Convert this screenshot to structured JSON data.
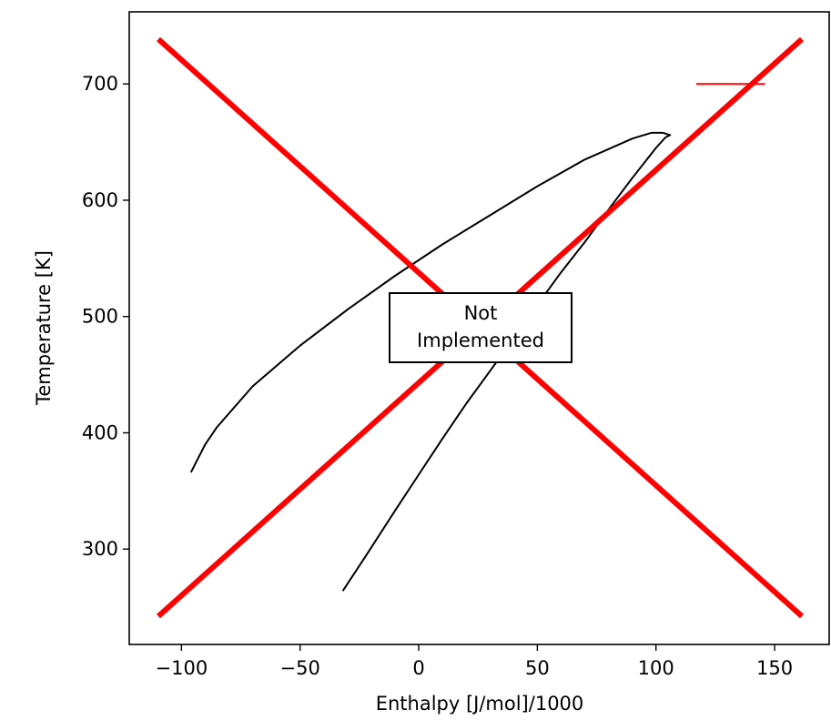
{
  "chart_data": {
    "type": "line",
    "xlabel": "Enthalpy [J/mol]/1000",
    "ylabel": "Temperature [K]",
    "xlim": [
      -122,
      173
    ],
    "ylim": [
      218,
      762
    ],
    "xticks": [
      -100,
      -50,
      0,
      50,
      100,
      150
    ],
    "xtick_labels": [
      "−100",
      "−50",
      "0",
      "50",
      "100",
      "150"
    ],
    "yticks": [
      300,
      400,
      500,
      600,
      700
    ],
    "ytick_labels": [
      "300",
      "400",
      "500",
      "600",
      "700"
    ],
    "grid": false,
    "series": [
      {
        "color": "#000000",
        "points": [
          [
            -32,
            264
          ],
          [
            -22,
            295
          ],
          [
            -10,
            333
          ],
          [
            0,
            364
          ],
          [
            10,
            395
          ],
          [
            20,
            425
          ],
          [
            30,
            453
          ],
          [
            40,
            481
          ],
          [
            50,
            510
          ],
          [
            60,
            538
          ],
          [
            70,
            564
          ],
          [
            80,
            592
          ],
          [
            90,
            619
          ],
          [
            100,
            645
          ],
          [
            104,
            654
          ],
          [
            106,
            656
          ],
          [
            103,
            658
          ],
          [
            98,
            658
          ],
          [
            90,
            653
          ],
          [
            70,
            635
          ],
          [
            50,
            612
          ],
          [
            30,
            587
          ],
          [
            10,
            562
          ],
          [
            -10,
            535
          ],
          [
            -30,
            506
          ],
          [
            -50,
            475
          ],
          [
            -70,
            440
          ],
          [
            -85,
            405
          ],
          [
            -90,
            390
          ],
          [
            -96,
            366
          ]
        ]
      }
    ],
    "annotation": {
      "text_line1": "Not",
      "text_line2": "Implemented",
      "red_cross": true,
      "cross_color": "#ff0000"
    },
    "legend_mark": {
      "color": "#ff0000",
      "x": [
        117,
        146
      ],
      "y": 700
    }
  }
}
